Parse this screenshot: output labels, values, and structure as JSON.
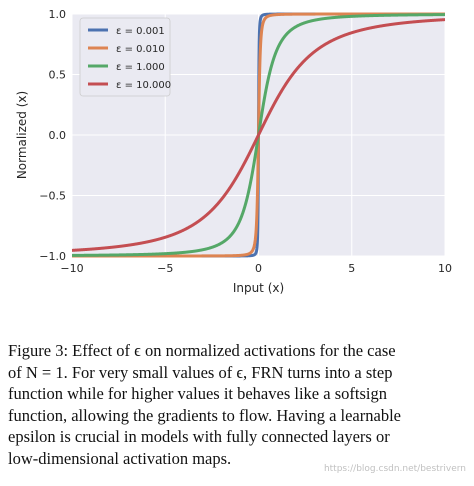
{
  "chart_data": {
    "type": "line",
    "title": "",
    "xlabel": "Input (x)",
    "ylabel": "Normalized (x)",
    "xlim": [
      -10,
      10
    ],
    "ylim": [
      -1.0,
      1.0
    ],
    "xticks": [
      -10,
      -5,
      0,
      5,
      10
    ],
    "xtick_labels": [
      "−10",
      "−5",
      "0",
      "5",
      "10"
    ],
    "yticks": [
      -1.0,
      -0.5,
      0.0,
      0.5,
      1.0
    ],
    "ytick_labels": [
      "−1.0",
      "−0.5",
      "0.0",
      "0.5",
      "1.0"
    ],
    "grid": true,
    "legend_position": "top-left",
    "function": "x / sqrt(x^2 + epsilon)",
    "series": [
      {
        "name": "ε = 0.001",
        "epsilon": 0.001,
        "color": "#4c72b0",
        "x": [
          -10,
          -5,
          -2,
          -1,
          -0.5,
          -0.2,
          -0.1,
          -0.05,
          -0.02,
          0,
          0.02,
          0.05,
          0.1,
          0.2,
          0.5,
          1,
          2,
          5,
          10
        ],
        "y": [
          -1.0,
          -1.0,
          -1.0,
          -0.9995,
          -0.998,
          -0.988,
          -0.953,
          -0.845,
          -0.535,
          0,
          0.535,
          0.845,
          0.953,
          0.988,
          0.998,
          0.9995,
          1.0,
          1.0,
          1.0
        ]
      },
      {
        "name": "ε = 0.010",
        "epsilon": 0.01,
        "color": "#dd8452",
        "x": [
          -10,
          -5,
          -2,
          -1,
          -0.5,
          -0.2,
          -0.1,
          -0.05,
          -0.02,
          0,
          0.02,
          0.05,
          0.1,
          0.2,
          0.5,
          1,
          2,
          5,
          10
        ],
        "y": [
          -0.9999,
          -0.9998,
          -0.9988,
          -0.995,
          -0.981,
          -0.894,
          -0.707,
          -0.447,
          -0.196,
          0,
          0.196,
          0.447,
          0.707,
          0.894,
          0.981,
          0.995,
          0.9988,
          0.9998,
          0.9999
        ]
      },
      {
        "name": "ε = 1.000",
        "epsilon": 1.0,
        "color": "#55a868",
        "x": [
          -10,
          -8,
          -6,
          -5,
          -4,
          -3,
          -2,
          -1.5,
          -1,
          -0.5,
          0,
          0.5,
          1,
          1.5,
          2,
          3,
          4,
          5,
          6,
          8,
          10
        ],
        "y": [
          -0.995,
          -0.992,
          -0.986,
          -0.981,
          -0.97,
          -0.949,
          -0.894,
          -0.832,
          -0.707,
          -0.447,
          0,
          0.447,
          0.707,
          0.832,
          0.894,
          0.949,
          0.97,
          0.981,
          0.986,
          0.992,
          0.995
        ]
      },
      {
        "name": "ε = 10.000",
        "epsilon": 10.0,
        "color": "#c44e52",
        "x": [
          -10,
          -8,
          -6,
          -5,
          -4,
          -3,
          -2,
          -1,
          0,
          1,
          2,
          3,
          4,
          5,
          6,
          8,
          10
        ],
        "y": [
          -0.953,
          -0.93,
          -0.885,
          -0.845,
          -0.785,
          -0.688,
          -0.535,
          -0.302,
          0,
          0.302,
          0.535,
          0.688,
          0.785,
          0.845,
          0.885,
          0.93,
          0.953
        ]
      }
    ]
  },
  "caption": {
    "lines": [
      "Figure 3: Effect of ϵ on normalized activations for the case",
      "of N = 1. For very small values of ϵ, FRN turns into a step",
      "function while for higher values it behaves like a softsign",
      "function, allowing the gradients to flow. Having a learnable",
      "epsilon is crucial in models with fully connected layers or",
      "low-dimensional activation maps."
    ]
  },
  "watermark": "https://blog.csdn.net/bestrivern"
}
